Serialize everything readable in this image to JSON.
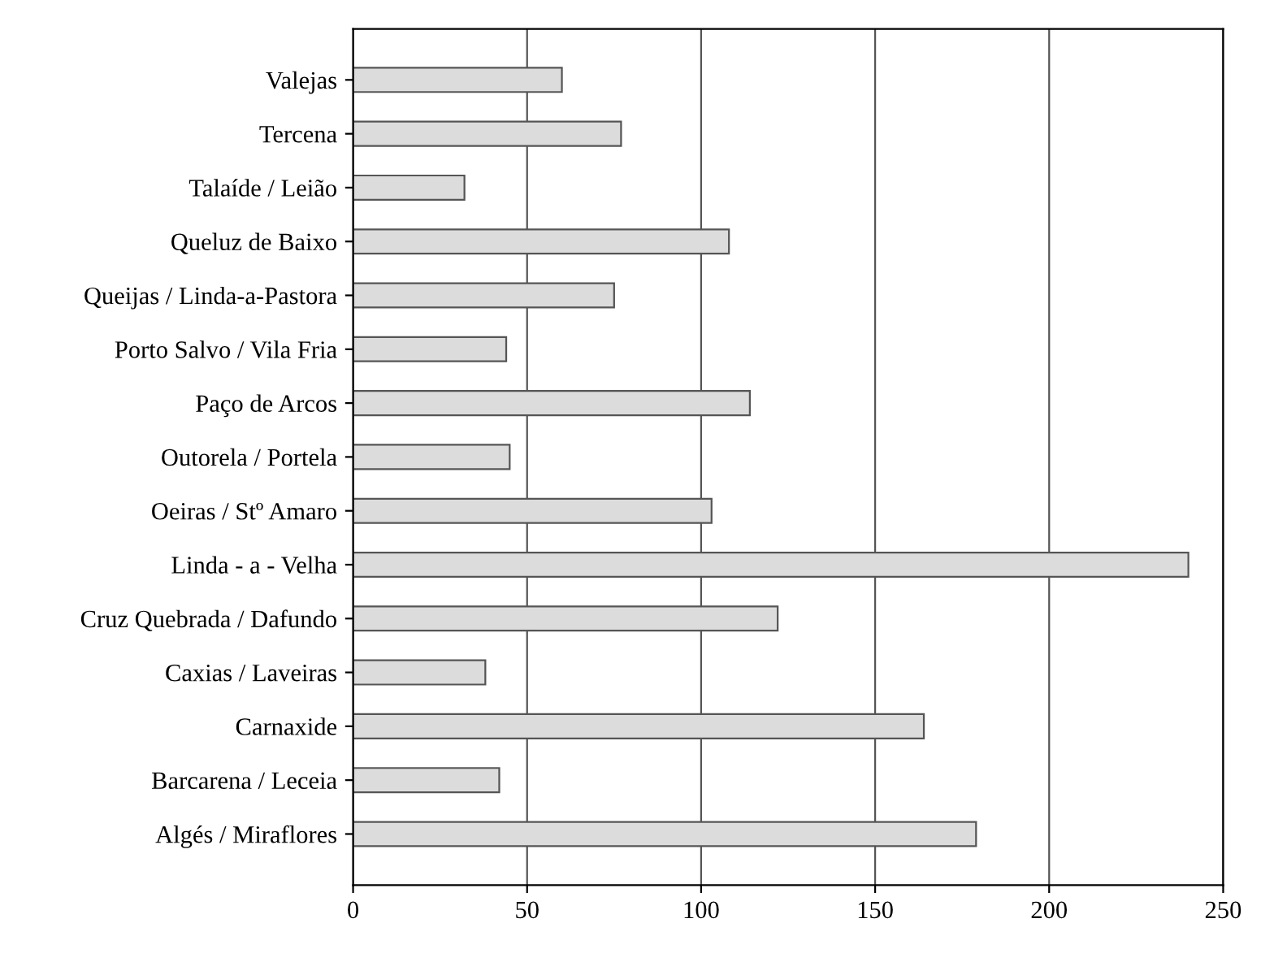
{
  "chart_data": {
    "type": "bar",
    "orientation": "horizontal",
    "categories": [
      "Valejas",
      "Tercena",
      "Talaíde / Leião",
      "Queluz de Baixo",
      "Queijas / Linda-a-Pastora",
      "Porto Salvo / Vila Fria",
      "Paço de Arcos",
      "Outorela / Portela",
      "Oeiras / Stº Amaro",
      "Linda - a - Velha",
      "Cruz Quebrada / Dafundo",
      "Caxias / Laveiras",
      "Carnaxide",
      "Barcarena / Leceia",
      "Algés / Miraflores"
    ],
    "values": [
      60,
      77,
      32,
      108,
      75,
      44,
      114,
      45,
      103,
      240,
      122,
      38,
      164,
      42,
      179
    ],
    "color": "#dcdcdc",
    "xlim": [
      0,
      250
    ],
    "xticks": [
      0,
      50,
      100,
      150,
      200,
      250
    ],
    "grid": "x"
  }
}
